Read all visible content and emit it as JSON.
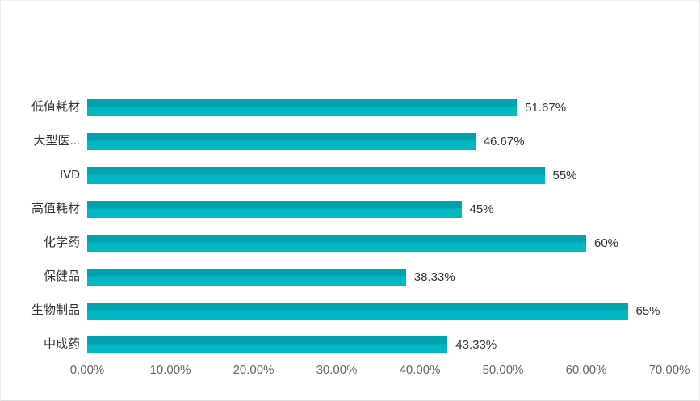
{
  "card": {
    "background": "#ffffff",
    "border_color": "#eeeeee",
    "title": ""
  },
  "chart_data": {
    "type": "bar",
    "orientation": "horizontal",
    "title": "",
    "xlabel": "",
    "ylabel": "",
    "categories": [
      "低值耗材",
      "大型医...",
      "IVD",
      "高值耗材",
      "化学药",
      "保健品",
      "生物制品",
      "中成药"
    ],
    "values": [
      51.67,
      46.67,
      55,
      45,
      60,
      38.33,
      65,
      43.33
    ],
    "value_labels": [
      "51.67%",
      "46.67%",
      "55%",
      "45%",
      "60%",
      "38.33%",
      "65%",
      "43.33%"
    ],
    "x_ticks": [
      "0.00%",
      "10.00%",
      "20.00%",
      "30.00%",
      "40.00%",
      "50.00%",
      "60.00%",
      "70.00%"
    ],
    "x_tick_values": [
      0,
      10,
      20,
      30,
      40,
      50,
      60,
      70
    ],
    "xlim": [
      0,
      70
    ],
    "grid": false,
    "legend_position": "none",
    "bar_color_top": "#00a2ad",
    "bar_color_bottom": "#00b8c2",
    "category_label_color": "#333333",
    "value_label_color": "#333333",
    "axis_label_color": "#666666"
  }
}
